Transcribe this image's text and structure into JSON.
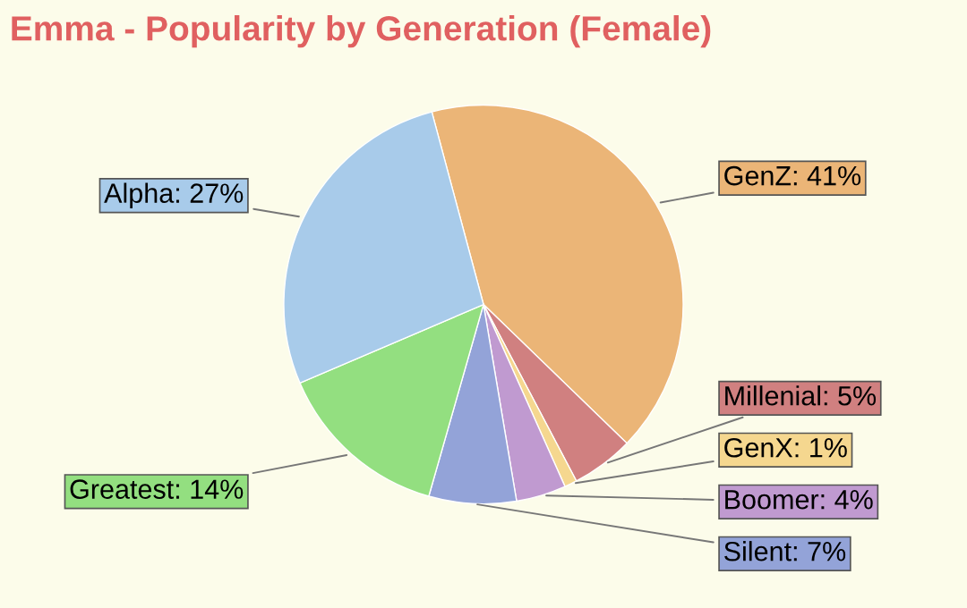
{
  "chart_data": {
    "type": "pie",
    "title": "Emma - Popularity by Generation (Female)",
    "categories": [
      "GenZ",
      "Millenial",
      "GenX",
      "Boomer",
      "Silent",
      "Greatest",
      "Alpha"
    ],
    "values": [
      41,
      5,
      1,
      4,
      7,
      14,
      27
    ],
    "value_labels": [
      "41%",
      "5%",
      "1%",
      "4%",
      "7%",
      "14%",
      "27%"
    ],
    "colors": [
      "#ebb577",
      "#d08080",
      "#f5d78f",
      "#c09ad0",
      "#93a3d8",
      "#93df80",
      "#a8cbea"
    ]
  }
}
